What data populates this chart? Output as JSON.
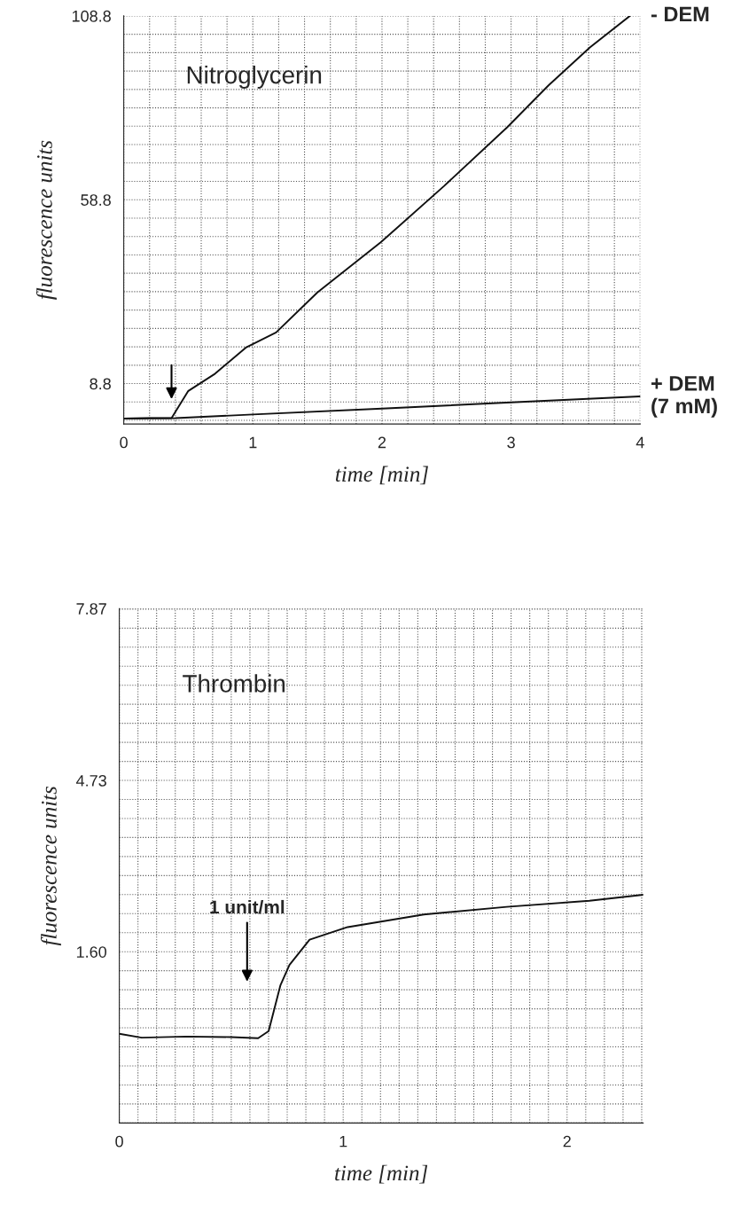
{
  "chart_data": [
    {
      "type": "line",
      "xlabel": "time [min]",
      "ylabel": "fluorescence units",
      "xlim": [
        0,
        4
      ],
      "xticks": [
        0,
        1,
        2,
        3,
        4
      ],
      "ylim": [
        -2.2,
        108.8
      ],
      "yticks": [
        8.8,
        58.8,
        108.8
      ],
      "grid": true,
      "series": [
        {
          "name": "- DEM",
          "color": "#111111",
          "x": [
            0,
            0.2,
            0.37,
            0.5,
            0.7,
            0.95,
            1.18,
            1.5,
            1.99,
            2.48,
            2.97,
            3.29,
            3.61,
            3.92
          ],
          "values": [
            -0.7,
            -0.6,
            -0.6,
            6.8,
            11.3,
            18.7,
            22.7,
            33.6,
            47.2,
            62.5,
            78.5,
            89.9,
            100.2,
            108.8
          ]
        },
        {
          "name": "+ DEM\n(7 mM)",
          "color": "#111111",
          "x": [
            0,
            0.4,
            1,
            2,
            3,
            4
          ],
          "values": [
            -0.7,
            -0.6,
            0.4,
            2.0,
            3.7,
            5.3
          ]
        }
      ],
      "annotations": [
        "Nitroglycerin"
      ]
    },
    {
      "type": "line",
      "xlabel": "time [min]",
      "ylabel": "fluorescence units",
      "xlim": [
        0,
        2.34
      ],
      "xticks": [
        0,
        1,
        2
      ],
      "ylim": [
        -1.53,
        7.87
      ],
      "yticks": [
        {
          "value": 1.6,
          "label": "1.60"
        },
        4.73,
        7.87
      ],
      "grid": true,
      "series": [
        {
          "color": "#111111",
          "x": [
            0,
            0.1,
            0.3,
            0.5,
            0.62,
            0.667,
            0.72,
            0.76,
            0.85,
            1.02,
            1.36,
            1.73,
            2.1,
            2.34
          ],
          "values": [
            0.1,
            0.03,
            0.05,
            0.04,
            0.02,
            0.15,
            0.99,
            1.36,
            1.82,
            2.05,
            2.28,
            2.42,
            2.53,
            2.64
          ]
        }
      ],
      "annotations": [
        "Thrombin",
        "1 unit/ml"
      ]
    }
  ]
}
